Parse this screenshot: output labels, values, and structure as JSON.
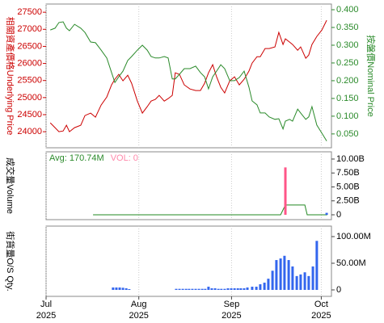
{
  "chart_data": [
    {
      "type": "line",
      "ylabel": "相關資產價格Underlying Price",
      "y2label": "按盤價Nominal Price",
      "yaxis_color": "#cc0000",
      "y2axis_color": "#2a8a2a",
      "xlim": [
        0,
        95.4
      ],
      "ylim": [
        23530,
        27740
      ],
      "y2lim": [
        0.011,
        0.416
      ],
      "yticks": [
        24000,
        24500,
        25000,
        25500,
        26000,
        26500,
        27000,
        27500
      ],
      "y2ticks": [
        {
          "value": 0.05,
          "label": "0.050"
        },
        {
          "value": 0.1,
          "label": "0.100"
        },
        {
          "value": 0.15,
          "label": "0.150"
        },
        {
          "value": 0.2,
          "label": "0.200"
        },
        {
          "value": 0.25,
          "label": "0.250"
        },
        {
          "value": 0.3,
          "label": "0.300"
        },
        {
          "value": 0.35,
          "label": "0.350"
        },
        {
          "value": 0.4,
          "label": "0.400"
        }
      ],
      "x": [
        1.4,
        3,
        4.3,
        5.7,
        6.8,
        7.8,
        9.5,
        11.6,
        13,
        14.9,
        16.5,
        18.4,
        20.3,
        21.9,
        23,
        24.3,
        25.7,
        27.3,
        28.6,
        30.5,
        32.2,
        33.8,
        35.1,
        36.5,
        37.8,
        39.5,
        40.8,
        42.2,
        43.2,
        44.6,
        46.2,
        48.1,
        50,
        51.6,
        53,
        54.3,
        55.7,
        57,
        58.4,
        59.7,
        61.4,
        63,
        64.6,
        66.2,
        67.8,
        68.9,
        70.5,
        71.6,
        73.2,
        74.6,
        76.5,
        77.8,
        79.2,
        80,
        81.4,
        82.4,
        84.1,
        85.1,
        86.8,
        87.8,
        88.9,
        90.5,
        92.2,
        93.8
      ],
      "series": [
        {
          "type": "line",
          "axis": "y",
          "color": "#cc0000",
          "values": [
            24260,
            24118,
            24000,
            24023,
            24189,
            24000,
            24118,
            24189,
            24473,
            24544,
            24426,
            24780,
            25017,
            25372,
            25537,
            25679,
            25490,
            25655,
            25419,
            24898,
            24544,
            24733,
            24898,
            24946,
            25064,
            24898,
            24970,
            25064,
            25726,
            25679,
            25372,
            25253,
            25206,
            25206,
            25419,
            25726,
            25963,
            25608,
            25301,
            25135,
            25490,
            25608,
            25372,
            25537,
            25774,
            26010,
            26199,
            26199,
            26436,
            26436,
            26483,
            26909,
            26554,
            26720,
            26625,
            26554,
            26388,
            26483,
            26152,
            26246,
            26554,
            26791,
            26980,
            27264
          ]
        },
        {
          "type": "line",
          "axis": "y2",
          "color": "#2a8a2a",
          "values": [
            0.343,
            0.348,
            0.364,
            0.366,
            0.348,
            0.341,
            0.359,
            0.348,
            0.336,
            0.309,
            0.307,
            0.286,
            0.264,
            0.223,
            0.195,
            0.211,
            0.227,
            0.257,
            0.268,
            0.286,
            0.3,
            0.286,
            0.268,
            0.264,
            0.264,
            0.268,
            0.264,
            0.205,
            0.205,
            0.218,
            0.234,
            0.234,
            0.241,
            0.223,
            0.211,
            0.177,
            0.211,
            0.227,
            0.245,
            0.234,
            0.2,
            0.2,
            0.209,
            0.227,
            0.182,
            0.143,
            0.132,
            0.109,
            0.109,
            0.098,
            0.091,
            0.093,
            0.064,
            0.086,
            0.091,
            0.086,
            0.12,
            0.109,
            0.091,
            0.098,
            0.127,
            0.075,
            0.052,
            0.03
          ]
        }
      ]
    },
    {
      "type": "combo",
      "ylabel": "成交量Volume",
      "annotations": [
        {
          "text": "Avg: 170.74M",
          "color": "#2a8a2a"
        },
        {
          "text": "VOL: 0",
          "color": "#ff88aa"
        }
      ],
      "xlim": [
        0,
        95.4
      ],
      "ylim": [
        -0.87,
        11.3
      ],
      "yticks": [
        0,
        {
          "value": 2.5,
          "label": "2.50B"
        },
        {
          "value": 5,
          "label": "5.00B"
        },
        {
          "value": 7.5,
          "label": "7.50B"
        },
        {
          "value": 10,
          "label": "10.00B"
        }
      ],
      "series": [
        {
          "type": "line",
          "color": "#228822",
          "x": [
            15.7,
            78.4,
            80,
            86.5,
            87.3,
            94
          ],
          "values": [
            0,
            0,
            1.75,
            1.75,
            0,
            0
          ]
        },
        {
          "type": "bar",
          "color": "#ff5588",
          "x": [
            80
          ],
          "values": [
            8.5
          ]
        },
        {
          "type": "bar",
          "color": "#3366ee",
          "x": [
            93.8
          ],
          "values": [
            0.35
          ]
        }
      ]
    },
    {
      "type": "bar",
      "ylabel": "街貨量O/S Qty.",
      "xlim": [
        0,
        95.4
      ],
      "ylim": [
        -12.1,
        119.7
      ],
      "yticks": [
        0,
        {
          "value": 50,
          "label": "50.00M"
        },
        {
          "value": 100,
          "label": "100.00M"
        }
      ],
      "xticks": [
        {
          "value": 0,
          "label": [
            "Jul",
            "2025"
          ]
        },
        {
          "value": 31,
          "label": [
            "Aug",
            "2025"
          ]
        },
        {
          "value": 62,
          "label": [
            "Sep",
            "2025"
          ]
        },
        {
          "value": 92,
          "label": [
            "Oct",
            "2025"
          ]
        }
      ],
      "series": [
        {
          "type": "bar",
          "color": "#3366ee",
          "x": [
            22.4,
            23.5,
            24.6,
            25.7,
            26.8,
            27.8,
            43.5,
            44.6,
            45.7,
            46.8,
            47.8,
            48.9,
            50,
            51.1,
            52.2,
            53.2,
            54.3,
            55.4,
            56.5,
            57.6,
            58.6,
            59.7,
            60.8,
            61.9,
            63,
            64.1,
            65.1,
            66.2,
            67.3,
            68.9,
            70.3,
            71.6,
            73,
            74.3,
            75.7,
            77,
            78.4,
            79.7,
            81.1,
            82.4,
            83.8,
            85.1,
            86.5,
            87.8,
            89.2,
            90.5
          ],
          "values": [
            4.5,
            4.5,
            4.5,
            4,
            3,
            1.5,
            2,
            2,
            2,
            2,
            2,
            2,
            2,
            2,
            2,
            2,
            6,
            3,
            3,
            2,
            2,
            2,
            3,
            3,
            3,
            3,
            3,
            3,
            4.5,
            6,
            6,
            10.6,
            13.6,
            21,
            36,
            56,
            59,
            64,
            56,
            44,
            26,
            29,
            33,
            26,
            44,
            92
          ]
        }
      ]
    }
  ]
}
